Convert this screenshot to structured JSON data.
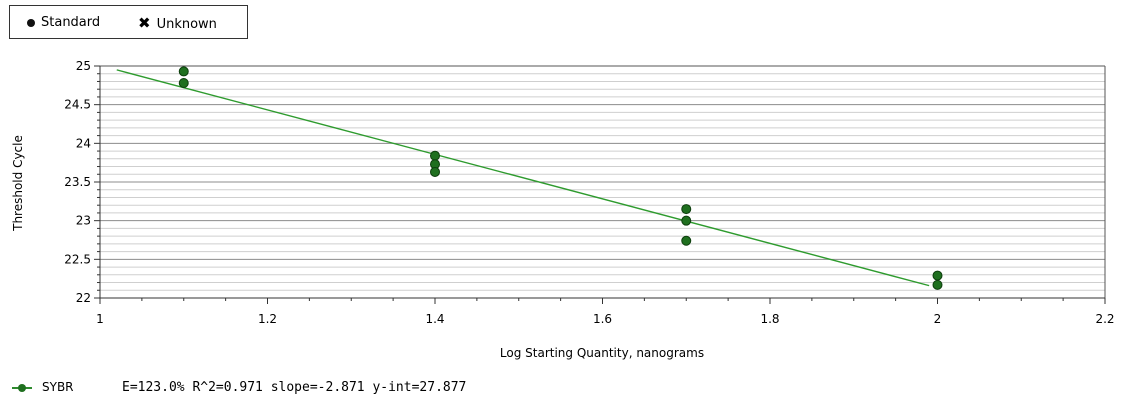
{
  "legend": {
    "standard_label": "Standard",
    "unknown_label": "Unknown"
  },
  "chart_data": {
    "type": "scatter",
    "xlabel": "Log Starting Quantity, nanograms",
    "ylabel": "Threshold Cycle",
    "xlim": [
      1,
      2.2
    ],
    "ylim": [
      22,
      25
    ],
    "x_ticks": [
      "1",
      "1.2",
      "1.4",
      "1.6",
      "1.8",
      "2",
      "2.2"
    ],
    "y_ticks": [
      "22",
      "22.5",
      "23",
      "23.5",
      "24",
      "24.5",
      "25"
    ],
    "grid": true,
    "legend_position": "top-left",
    "series": [
      {
        "name": "Standard",
        "color": "#1f6f1f",
        "points": [
          {
            "x": 1.1,
            "y": 24.93
          },
          {
            "x": 1.1,
            "y": 24.78
          },
          {
            "x": 1.4,
            "y": 23.84
          },
          {
            "x": 1.4,
            "y": 23.73
          },
          {
            "x": 1.4,
            "y": 23.63
          },
          {
            "x": 1.7,
            "y": 23.15
          },
          {
            "x": 1.7,
            "y": 23.0
          },
          {
            "x": 1.7,
            "y": 22.74
          },
          {
            "x": 2.0,
            "y": 22.29
          },
          {
            "x": 2.0,
            "y": 22.17
          }
        ]
      }
    ],
    "fit_line": {
      "color": "#2e9b2e",
      "x": [
        1.02,
        1.99
      ],
      "y": [
        24.95,
        22.16
      ]
    }
  },
  "footer": {
    "series_name": "SYBR",
    "stats": "E=123.0% R^2=0.971 slope=-2.871 y-int=27.877"
  }
}
